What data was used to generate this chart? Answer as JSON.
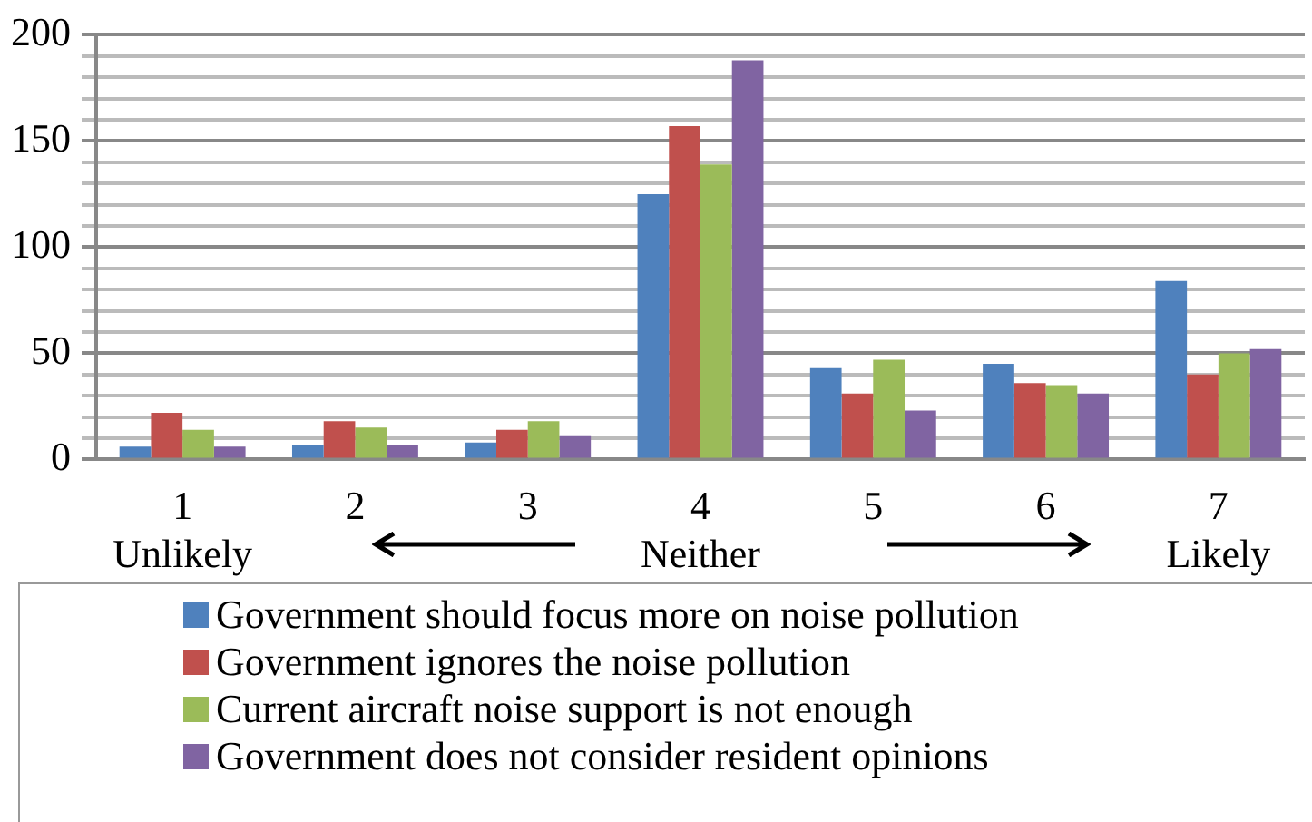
{
  "chart_data": {
    "type": "bar",
    "categories": [
      "1\nUnlikely",
      "2",
      "3",
      "4\nNeither",
      "5",
      "6",
      "7\nLikely"
    ],
    "series": [
      {
        "name": "Government should focus more on noise pollution",
        "color": "#4f81bd",
        "values": [
          6,
          7,
          8,
          125,
          43,
          45,
          84
        ]
      },
      {
        "name": "Government ignores the noise pollution",
        "color": "#c0504d",
        "values": [
          22,
          18,
          14,
          157,
          31,
          36,
          40
        ]
      },
      {
        "name": "Current aircraft noise support is not enough",
        "color": "#9bbb59",
        "values": [
          14,
          15,
          18,
          139,
          47,
          35,
          50
        ]
      },
      {
        "name": "Government does not consider resident opinions",
        "color": "#8064a2",
        "values": [
          6,
          7,
          11,
          188,
          23,
          31,
          52
        ]
      }
    ],
    "ylim": [
      0,
      200
    ],
    "yticks": [
      0,
      {
        "value": 10,
        "label": null
      },
      {
        "value": 20,
        "label": null
      },
      {
        "value": 30,
        "label": null
      },
      {
        "value": 40,
        "label": null
      },
      50,
      {
        "value": 60,
        "label": null
      },
      {
        "value": 70,
        "label": null
      },
      {
        "value": 80,
        "label": null
      },
      {
        "value": 90,
        "label": null
      },
      100,
      {
        "value": 110,
        "label": null
      },
      {
        "value": 120,
        "label": null
      },
      {
        "value": 130,
        "label": null
      },
      {
        "value": 140,
        "label": null
      },
      150,
      {
        "value": 160,
        "label": null
      },
      {
        "value": 170,
        "label": null
      },
      {
        "value": 180,
        "label": null
      },
      {
        "value": 190,
        "label": null
      },
      200
    ],
    "grid": "y",
    "legend": "bottom"
  }
}
